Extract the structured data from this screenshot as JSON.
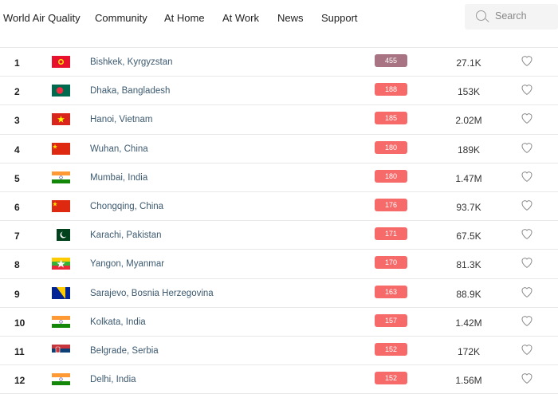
{
  "nav": {
    "brand": "World Air Quality",
    "items": [
      "Community",
      "At Home",
      "At Work",
      "News",
      "Support"
    ]
  },
  "search": {
    "placeholder": "Search"
  },
  "colors": {
    "hazardous": "#a87383",
    "unhealthy": "#f66a6a"
  },
  "rows": [
    {
      "rank": "1",
      "flag": "kg",
      "city": "Bishkek, Kyrgyzstan",
      "aqi": "455",
      "level": "hazardous",
      "followers": "27.1K"
    },
    {
      "rank": "2",
      "flag": "bd",
      "city": "Dhaka, Bangladesh",
      "aqi": "188",
      "level": "unhealthy",
      "followers": "153K"
    },
    {
      "rank": "3",
      "flag": "vn",
      "city": "Hanoi, Vietnam",
      "aqi": "185",
      "level": "unhealthy",
      "followers": "2.02M"
    },
    {
      "rank": "4",
      "flag": "cn",
      "city": "Wuhan, China",
      "aqi": "180",
      "level": "unhealthy",
      "followers": "189K"
    },
    {
      "rank": "5",
      "flag": "in",
      "city": "Mumbai, India",
      "aqi": "180",
      "level": "unhealthy",
      "followers": "1.47M"
    },
    {
      "rank": "6",
      "flag": "cn",
      "city": "Chongqing, China",
      "aqi": "176",
      "level": "unhealthy",
      "followers": "93.7K"
    },
    {
      "rank": "7",
      "flag": "pk",
      "city": "Karachi, Pakistan",
      "aqi": "171",
      "level": "unhealthy",
      "followers": "67.5K"
    },
    {
      "rank": "8",
      "flag": "mm",
      "city": "Yangon, Myanmar",
      "aqi": "170",
      "level": "unhealthy",
      "followers": "81.3K"
    },
    {
      "rank": "9",
      "flag": "ba",
      "city": "Sarajevo, Bosnia Herzegovina",
      "aqi": "163",
      "level": "unhealthy",
      "followers": "88.9K"
    },
    {
      "rank": "10",
      "flag": "in",
      "city": "Kolkata, India",
      "aqi": "157",
      "level": "unhealthy",
      "followers": "1.42M"
    },
    {
      "rank": "11",
      "flag": "rs",
      "city": "Belgrade, Serbia",
      "aqi": "152",
      "level": "unhealthy",
      "followers": "172K"
    },
    {
      "rank": "12",
      "flag": "in",
      "city": "Delhi, India",
      "aqi": "152",
      "level": "unhealthy",
      "followers": "1.56M"
    }
  ]
}
